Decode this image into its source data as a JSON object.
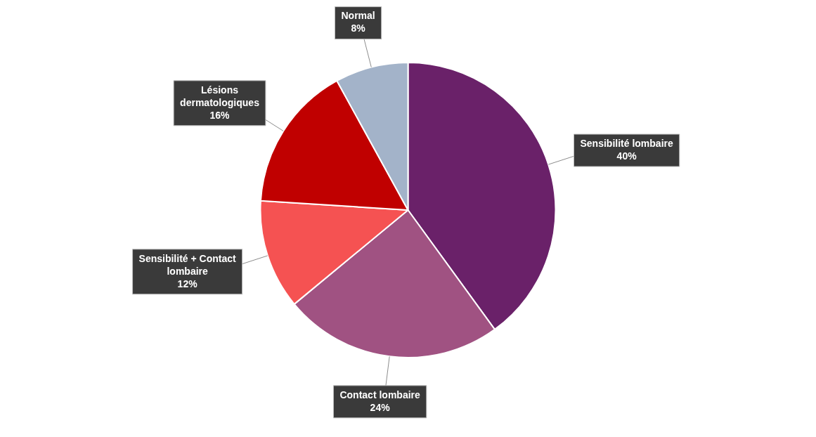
{
  "chart_data": {
    "type": "pie",
    "categories": [
      "Sensibilité lombaire",
      "Contact lombaire",
      "Sensibilité + Contact lombaire",
      "Lésions dermatologiques",
      "Normal"
    ],
    "values": [
      40,
      24,
      12,
      16,
      8
    ],
    "value_labels": [
      "40%",
      "24%",
      "12%",
      "16%",
      "8%"
    ],
    "colors": [
      "#6a2169",
      "#a05282",
      "#f55252",
      "#c00000",
      "#a3b3c9"
    ],
    "legend": false
  }
}
